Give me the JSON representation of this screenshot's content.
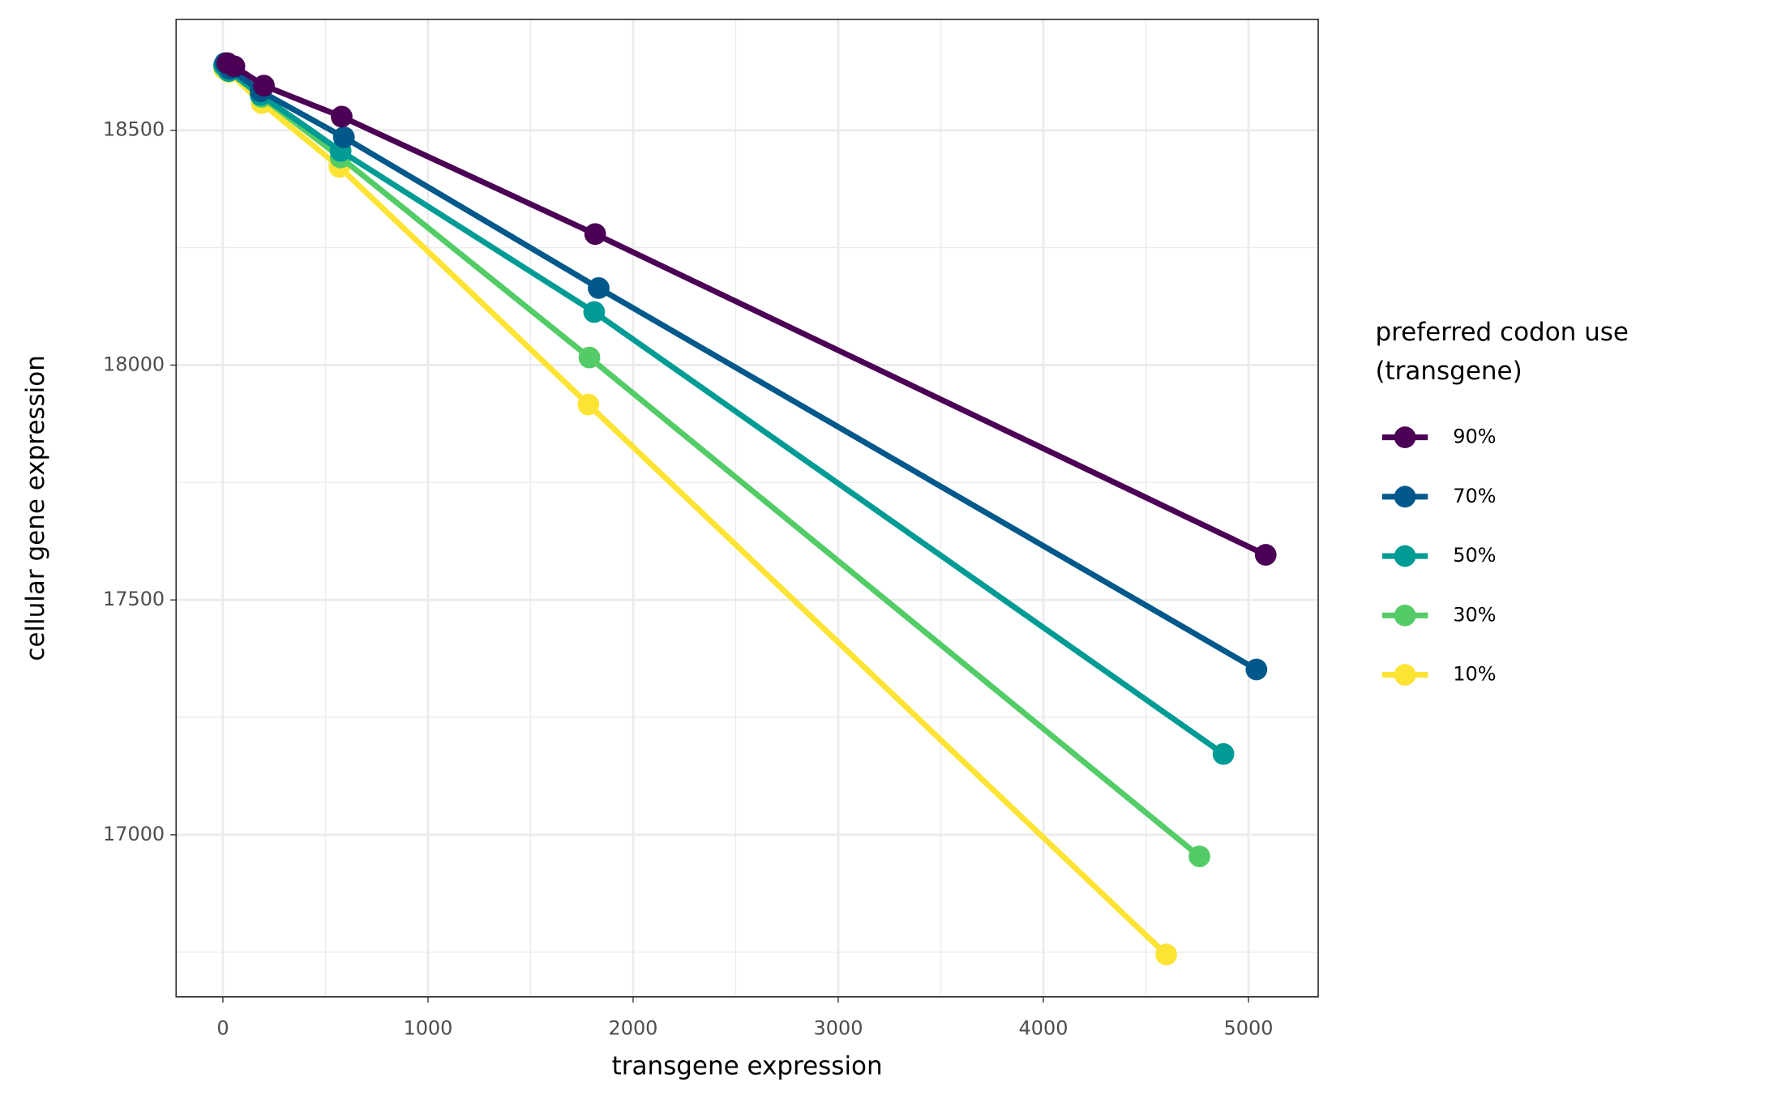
{
  "chart_data": {
    "type": "line",
    "x_label": "transgene expression",
    "y_label": "cellular gene expression",
    "legend_title": [
      "preferred codon use",
      "(transgene)"
    ],
    "legend": "right",
    "grid": true,
    "xlim": [
      -228,
      5340
    ],
    "ylim": [
      16655,
      18736
    ],
    "xticks": [
      0,
      1000,
      2000,
      3000,
      4000,
      5000
    ],
    "yticks": [
      17000,
      17500,
      18000,
      18500
    ],
    "xminor": [
      500,
      1500,
      2500,
      3500,
      4500
    ],
    "yminor": [
      16750,
      17250,
      17750,
      18250
    ],
    "series": [
      {
        "name": "90%",
        "color": "#4b0055",
        "x": [
          22,
          56,
          200,
          579,
          1815,
          5084
        ],
        "values": [
          18643,
          18636,
          18595,
          18529,
          18279,
          17596
        ]
      },
      {
        "name": "70%",
        "color": "#00588b",
        "x": [
          11,
          33,
          184,
          590,
          1832,
          5039
        ],
        "values": [
          18643,
          18631,
          18583,
          18485,
          18164,
          17352
        ]
      },
      {
        "name": "50%",
        "color": "#009b95",
        "x": [
          6,
          28,
          184,
          574,
          1810,
          4878
        ],
        "values": [
          18639,
          18626,
          18575,
          18456,
          18113,
          17172
        ]
      },
      {
        "name": "30%",
        "color": "#53cc67",
        "x": [
          6,
          28,
          189,
          574,
          1787,
          4761
        ],
        "values": [
          18636,
          18626,
          18571,
          18442,
          18016,
          16954
        ]
      },
      {
        "name": "10%",
        "color": "#fde333",
        "x": [
          6,
          28,
          189,
          568,
          1782,
          4599
        ],
        "values": [
          18631,
          18624,
          18558,
          18422,
          17916,
          16745
        ]
      }
    ]
  }
}
